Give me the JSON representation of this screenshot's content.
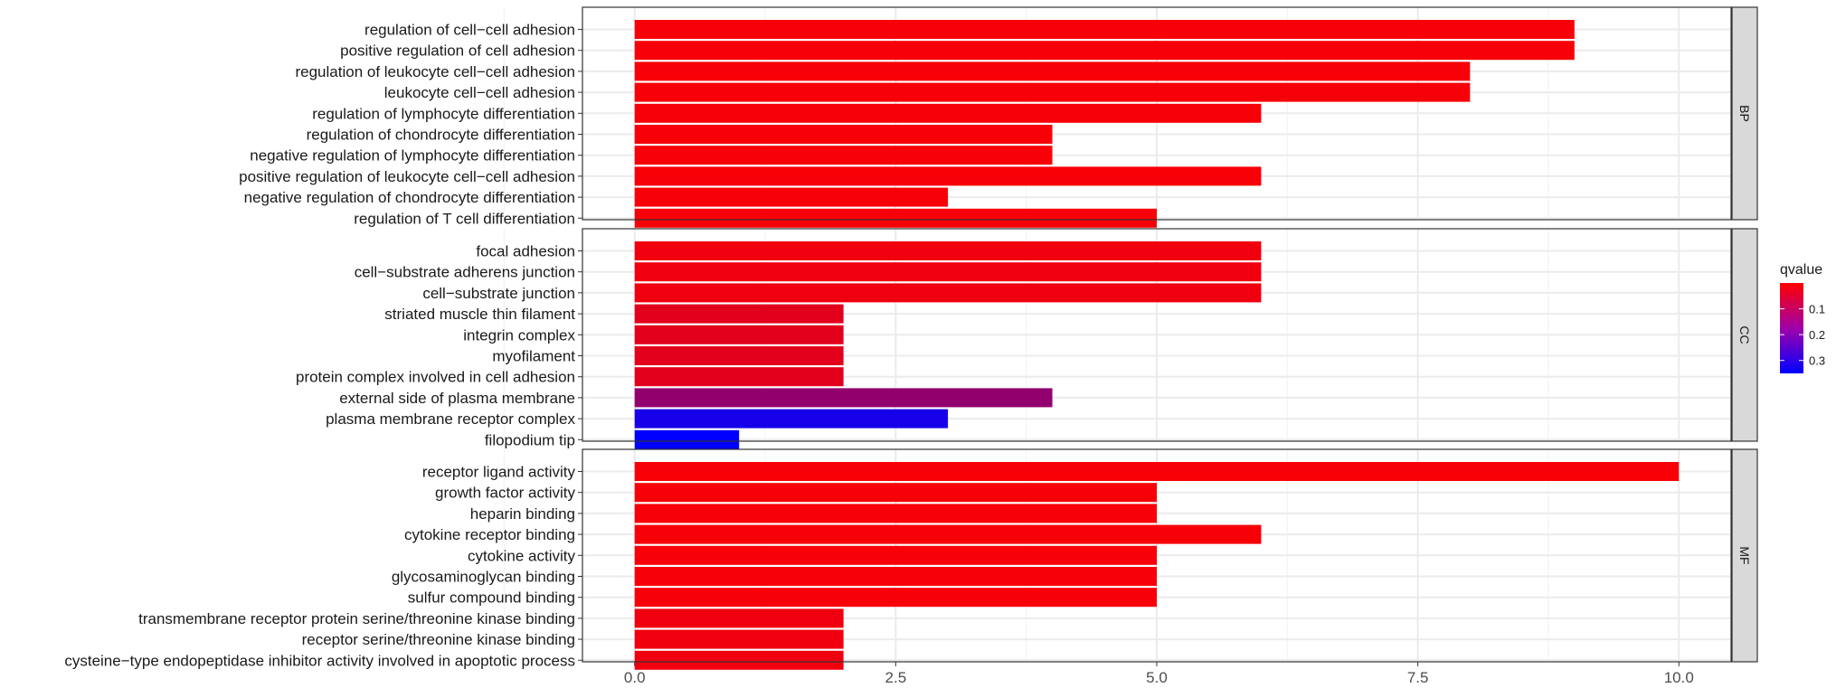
{
  "chart_data": {
    "type": "bar",
    "orientation": "horizontal",
    "xlabel": "",
    "ylabel": "",
    "xlim": [
      -0.5,
      10.5
    ],
    "xticks": [
      0,
      2.5,
      5,
      7.5,
      10
    ],
    "xtick_labels": [
      "0.0",
      "2.5",
      "5.0",
      "7.5",
      "10.0"
    ],
    "grid": true,
    "facets": [
      {
        "name": "BP",
        "categories": [
          "regulation of cell−cell adhesion",
          "positive regulation of cell adhesion",
          "regulation of leukocyte cell−cell adhesion",
          "leukocyte cell−cell adhesion",
          "regulation of lymphocyte differentiation",
          "regulation of chondrocyte differentiation",
          "negative regulation of lymphocyte differentiation",
          "positive regulation of leukocyte cell−cell adhesion",
          "negative regulation of chondrocyte differentiation",
          "regulation of T cell differentiation"
        ],
        "values": [
          9,
          9,
          8,
          8,
          6,
          4,
          4,
          6,
          3,
          5
        ],
        "qvalue": [
          0.01,
          0.01,
          0.01,
          0.01,
          0.01,
          0.01,
          0.01,
          0.01,
          0.01,
          0.01
        ]
      },
      {
        "name": "CC",
        "categories": [
          "focal adhesion",
          "cell−substrate adherens junction",
          "cell−substrate junction",
          "striated muscle thin filament",
          "integrin complex",
          "myofilament",
          "protein complex involved in cell adhesion",
          "external side of plasma membrane",
          "plasma membrane receptor complex",
          "filopodium tip"
        ],
        "values": [
          6,
          6,
          6,
          2,
          2,
          2,
          2,
          4,
          3,
          1
        ],
        "qvalue": [
          0.02,
          0.02,
          0.02,
          0.04,
          0.04,
          0.04,
          0.04,
          0.15,
          0.32,
          0.35
        ]
      },
      {
        "name": "MF",
        "categories": [
          "receptor ligand activity",
          "growth factor activity",
          "heparin binding",
          "cytokine receptor binding",
          "cytokine activity",
          "glycosaminoglycan binding",
          "sulfur compound binding",
          "transmembrane receptor protein serine/threonine kinase binding",
          "receptor serine/threonine kinase binding",
          "cysteine−type endopeptidase inhibitor activity involved in apoptotic process"
        ],
        "values": [
          10,
          5,
          5,
          6,
          5,
          5,
          5,
          2,
          2,
          2
        ],
        "qvalue": [
          0.01,
          0.01,
          0.01,
          0.01,
          0.01,
          0.01,
          0.01,
          0.02,
          0.02,
          0.02
        ]
      }
    ],
    "legend": {
      "title": "qvalue",
      "placement": "right",
      "min": 0.0,
      "max": 0.35,
      "ticks": [
        0.1,
        0.2,
        0.3
      ],
      "tick_labels": [
        "0.1",
        "0.2",
        "0.3"
      ],
      "color_low": "#ff0000",
      "color_high": "#0000ff"
    }
  }
}
